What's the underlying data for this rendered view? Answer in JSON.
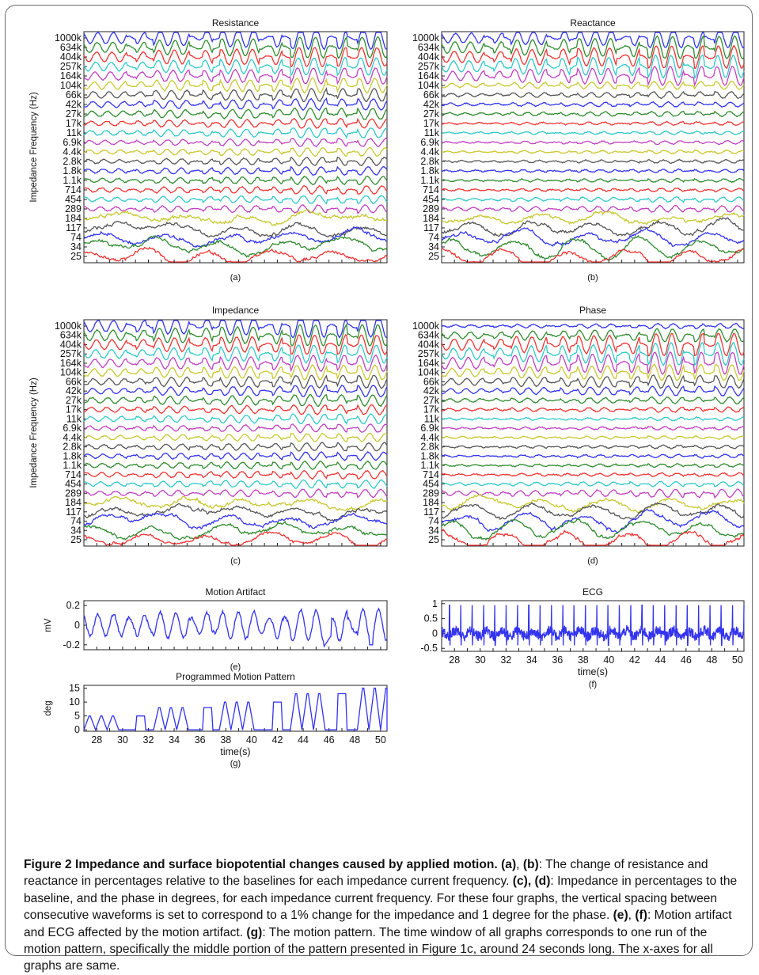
{
  "caption": {
    "lead": "Figure 2 Impedance and surface biopotential changes caused by applied motion.",
    "ref_a": "(a)",
    "sep_ab": ", ",
    "ref_b": "(b)",
    "text_1": ": The change of resistance and reactance in percentages relative to the baselines for each impedance current frequency. ",
    "ref_cd": "(c), (d)",
    "text_2": ": Impedance in percentages to the baseline, and the phase in degrees, for each impedance current frequency. For these four graphs, the vertical spacing between consecutive waveforms is set to correspond to a 1% change for the impedance and 1 degree for the phase. ",
    "ref_e": "(e)",
    "sep_ef": ", ",
    "ref_f": "(f)",
    "text_3": ": Motion artifact and ECG affected by the motion artifact. ",
    "ref_g": "(g)",
    "text_4": ": The motion pattern. The time window of all graphs corresponds to one run of the motion pattern, specifically the middle portion of the pattern presented in Figure 1c, around 24 seconds long. The x-axes for all graphs are same."
  },
  "chart_data": [
    {
      "id": "a",
      "type": "line",
      "title": "Resistance",
      "ylabel": "Impedance Frequency (Hz)",
      "panel_label": "(a)",
      "xlim": [
        27,
        50.5
      ],
      "y_ticks": [
        "1000k",
        "634k",
        "404k",
        "257k",
        "164k",
        "104k",
        "66k",
        "42k",
        "27k",
        "17k",
        "11k",
        "6.9k",
        "4.4k",
        "2.8k",
        "1.8k",
        "1.1k",
        "714",
        "454",
        "289",
        "184",
        "117",
        "74",
        "34",
        "25"
      ],
      "series_colors": [
        "#3333ee",
        "#2e8b2e",
        "#ee3333",
        "#30c8c8",
        "#c040c0",
        "#c8c830",
        "#555555",
        "#3333ee",
        "#2e8b2e",
        "#ee3333",
        "#30c8c8",
        "#c040c0",
        "#c8c830",
        "#555555",
        "#3333ee",
        "#2e8b2e",
        "#ee3333",
        "#30c8c8",
        "#c040c0",
        "#c8c830",
        "#555555",
        "#3333ee",
        "#2e8b2e",
        "#ee3333"
      ]
    },
    {
      "id": "b",
      "type": "line",
      "title": "Reactance",
      "ylabel": "",
      "panel_label": "(b)",
      "xlim": [
        27,
        50.5
      ],
      "y_ticks": [
        "1000k",
        "634k",
        "404k",
        "257k",
        "164k",
        "104k",
        "66k",
        "42k",
        "27k",
        "17k",
        "11k",
        "6.9k",
        "4.4k",
        "2.8k",
        "1.8k",
        "1.1k",
        "714",
        "454",
        "289",
        "184",
        "117",
        "74",
        "34",
        "25"
      ],
      "series_colors": [
        "#3333ee",
        "#2e8b2e",
        "#ee3333",
        "#30c8c8",
        "#c040c0",
        "#c8c830",
        "#555555",
        "#3333ee",
        "#2e8b2e",
        "#ee3333",
        "#30c8c8",
        "#c040c0",
        "#c8c830",
        "#555555",
        "#3333ee",
        "#2e8b2e",
        "#ee3333",
        "#30c8c8",
        "#c040c0",
        "#c8c830",
        "#555555",
        "#3333ee",
        "#2e8b2e",
        "#ee3333"
      ]
    },
    {
      "id": "c",
      "type": "line",
      "title": "Impedance",
      "ylabel": "Impedance Frequency (Hz)",
      "panel_label": "(c)",
      "xlim": [
        27,
        50.5
      ],
      "y_ticks": [
        "1000k",
        "634k",
        "404k",
        "257k",
        "164k",
        "104k",
        "66k",
        "42k",
        "27k",
        "17k",
        "11k",
        "6.9k",
        "4.4k",
        "2.8k",
        "1.8k",
        "1.1k",
        "714",
        "454",
        "289",
        "184",
        "117",
        "74",
        "34",
        "25"
      ],
      "series_colors": [
        "#3333ee",
        "#2e8b2e",
        "#ee3333",
        "#30c8c8",
        "#c040c0",
        "#c8c830",
        "#555555",
        "#3333ee",
        "#2e8b2e",
        "#ee3333",
        "#30c8c8",
        "#c040c0",
        "#c8c830",
        "#555555",
        "#3333ee",
        "#2e8b2e",
        "#ee3333",
        "#30c8c8",
        "#c040c0",
        "#c8c830",
        "#555555",
        "#3333ee",
        "#2e8b2e",
        "#ee3333"
      ]
    },
    {
      "id": "d",
      "type": "line",
      "title": "Phase",
      "ylabel": "",
      "panel_label": "(d)",
      "xlim": [
        27,
        50.5
      ],
      "y_ticks": [
        "1000k",
        "634k",
        "404k",
        "257k",
        "164k",
        "104k",
        "66k",
        "42k",
        "27k",
        "17k",
        "11k",
        "6.9k",
        "4.4k",
        "2.8k",
        "1.8k",
        "1.1k",
        "714",
        "454",
        "289",
        "184",
        "117",
        "74",
        "34",
        "25"
      ],
      "series_colors": [
        "#3333ee",
        "#2e8b2e",
        "#ee3333",
        "#30c8c8",
        "#c040c0",
        "#c8c830",
        "#555555",
        "#3333ee",
        "#2e8b2e",
        "#ee3333",
        "#30c8c8",
        "#c040c0",
        "#c8c830",
        "#555555",
        "#3333ee",
        "#2e8b2e",
        "#ee3333",
        "#30c8c8",
        "#c040c0",
        "#c8c830",
        "#555555",
        "#3333ee",
        "#2e8b2e",
        "#ee3333"
      ]
    },
    {
      "id": "e",
      "type": "line",
      "title": "Motion Artifact",
      "ylabel": "mV",
      "panel_label": "(e)",
      "xlim": [
        27,
        50.5
      ],
      "ylim": [
        -0.25,
        0.25
      ],
      "y_ticks": [
        "0.2",
        "0",
        "-0.2"
      ],
      "y_tick_values": [
        0.2,
        0,
        -0.2
      ],
      "series_colors": [
        "#3333ee"
      ]
    },
    {
      "id": "f",
      "type": "line",
      "title": "ECG",
      "ylabel": "",
      "xlabel": "time(s)",
      "panel_label": "(f)",
      "xlim": [
        27,
        50.5
      ],
      "ylim": [
        -0.6,
        1.1
      ],
      "y_ticks": [
        "1",
        "0.5",
        "0",
        "-0.5"
      ],
      "y_tick_values": [
        1,
        0.5,
        0,
        -0.5
      ],
      "x_ticks": [
        "28",
        "30",
        "32",
        "34",
        "36",
        "38",
        "40",
        "42",
        "44",
        "46",
        "48",
        "50"
      ],
      "x_tick_values": [
        28,
        30,
        32,
        34,
        36,
        38,
        40,
        42,
        44,
        46,
        48,
        50
      ],
      "series_colors": [
        "#3333ee"
      ]
    },
    {
      "id": "g",
      "type": "line",
      "title": "Programmed Motion Pattern",
      "ylabel": "deg",
      "xlabel": "time(s)",
      "panel_label": "(g)",
      "xlim": [
        27,
        50.5
      ],
      "ylim": [
        -0.5,
        16
      ],
      "y_ticks": [
        "15",
        "10",
        "5",
        "0"
      ],
      "y_tick_values": [
        15,
        10,
        5,
        0
      ],
      "x_ticks": [
        "28",
        "30",
        "32",
        "34",
        "36",
        "38",
        "40",
        "42",
        "44",
        "46",
        "48",
        "50"
      ],
      "x_tick_values": [
        28,
        30,
        32,
        34,
        36,
        38,
        40,
        42,
        44,
        46,
        48,
        50
      ],
      "series_colors": [
        "#3333ee"
      ],
      "pattern": [
        {
          "start": 27.0,
          "amp": 5,
          "count": 3
        },
        {
          "start": 31.0,
          "amp": 5,
          "count": 1
        },
        {
          "start": 32.4,
          "amp": 8,
          "count": 3
        },
        {
          "start": 36.2,
          "amp": 8,
          "count": 1
        },
        {
          "start": 37.5,
          "amp": 10,
          "count": 3
        },
        {
          "start": 41.6,
          "amp": 10,
          "count": 1
        },
        {
          "start": 43.0,
          "amp": 13,
          "count": 3
        },
        {
          "start": 46.6,
          "amp": 13,
          "count": 1
        },
        {
          "start": 48.2,
          "amp": 15,
          "count": 3
        },
        {
          "start": 52.0,
          "amp": 15,
          "count": 1
        }
      ]
    }
  ]
}
